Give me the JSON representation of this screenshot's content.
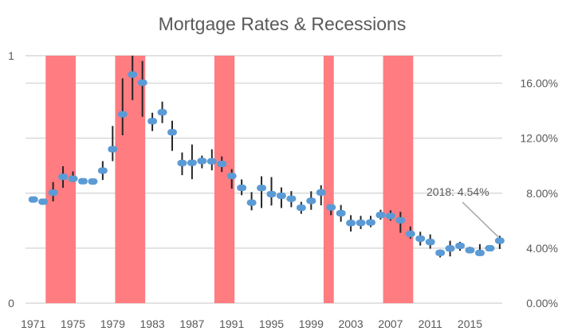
{
  "chart_data": {
    "type": "line",
    "title": "Mortgage Rates & Recessions",
    "x": [
      1971,
      1972,
      1973,
      1974,
      1975,
      1976,
      1977,
      1978,
      1979,
      1980,
      1981,
      1982,
      1983,
      1984,
      1985,
      1986,
      1987,
      1988,
      1989,
      1990,
      1991,
      1992,
      1993,
      1994,
      1995,
      1996,
      1997,
      1998,
      1999,
      2000,
      2001,
      2002,
      2003,
      2004,
      2005,
      2006,
      2007,
      2008,
      2009,
      2010,
      2011,
      2012,
      2013,
      2014,
      2015,
      2016,
      2017,
      2018
    ],
    "x_tick_labels": [
      "1971",
      "1975",
      "1979",
      "1983",
      "1987",
      "1991",
      "1995",
      "1999",
      "2003",
      "2007",
      "2011",
      "2015"
    ],
    "series": [
      {
        "kind": "average-marker",
        "axis": "right",
        "color": "#5B9BD5",
        "values": [
          7.54,
          7.38,
          8.04,
          9.19,
          9.05,
          8.87,
          8.85,
          9.64,
          11.2,
          13.74,
          16.63,
          16.04,
          13.24,
          13.88,
          12.43,
          10.19,
          10.21,
          10.34,
          10.32,
          10.13,
          9.25,
          8.39,
          7.31,
          8.38,
          7.93,
          7.81,
          7.6,
          6.94,
          7.44,
          8.05,
          6.97,
          6.54,
          5.83,
          5.84,
          5.87,
          6.41,
          6.34,
          6.03,
          5.04,
          4.69,
          4.45,
          3.66,
          3.98,
          4.17,
          3.85,
          3.65,
          3.99,
          4.54
        ],
        "high": [
          7.62,
          7.45,
          8.81,
          9.96,
          9.58,
          8.95,
          8.93,
          10.33,
          12.89,
          16.35,
          18.0,
          17.62,
          13.85,
          14.66,
          13.27,
          10.96,
          11.54,
          10.73,
          11.19,
          10.67,
          9.75,
          9.0,
          8.08,
          9.23,
          9.17,
          8.42,
          8.15,
          7.37,
          8.14,
          8.58,
          7.18,
          7.14,
          6.4,
          6.35,
          6.35,
          6.79,
          6.75,
          6.64,
          5.58,
          5.19,
          5.0,
          3.9,
          4.54,
          4.46,
          4.1,
          4.29,
          4.23,
          4.9
        ],
        "low": [
          7.46,
          7.31,
          7.4,
          8.39,
          8.81,
          8.79,
          8.77,
          8.96,
          10.33,
          12.21,
          14.77,
          13.56,
          12.52,
          13.1,
          11.08,
          9.31,
          9.02,
          9.81,
          9.66,
          9.54,
          8.33,
          7.85,
          6.75,
          6.92,
          7.1,
          6.92,
          6.98,
          6.5,
          6.79,
          7.12,
          6.4,
          5.92,
          5.21,
          5.39,
          5.53,
          6.08,
          6.0,
          5.12,
          4.69,
          4.19,
          3.96,
          3.33,
          3.4,
          3.81,
          3.67,
          3.44,
          3.81,
          3.94
        ]
      },
      {
        "kind": "recession-column",
        "axis": "left",
        "color": "#FF7C80",
        "recession_years": [
          1973,
          1974,
          1975,
          1980,
          1981,
          1982,
          1990,
          1991,
          2001,
          2007,
          2008,
          2009
        ]
      }
    ],
    "left_axis": {
      "range": [
        0,
        1
      ],
      "tick_labels": [
        "0",
        "1"
      ]
    },
    "right_axis": {
      "range": [
        0,
        18
      ],
      "tick_labels": [
        "0.00%",
        "4.00%",
        "8.00%",
        "12.00%",
        "16.00%"
      ],
      "ticks": [
        0,
        4,
        8,
        12,
        16
      ]
    },
    "grid": true,
    "grid_color": "#D9D9D9",
    "annotation": {
      "text": "2018: 4.54%",
      "year": 2018
    }
  }
}
